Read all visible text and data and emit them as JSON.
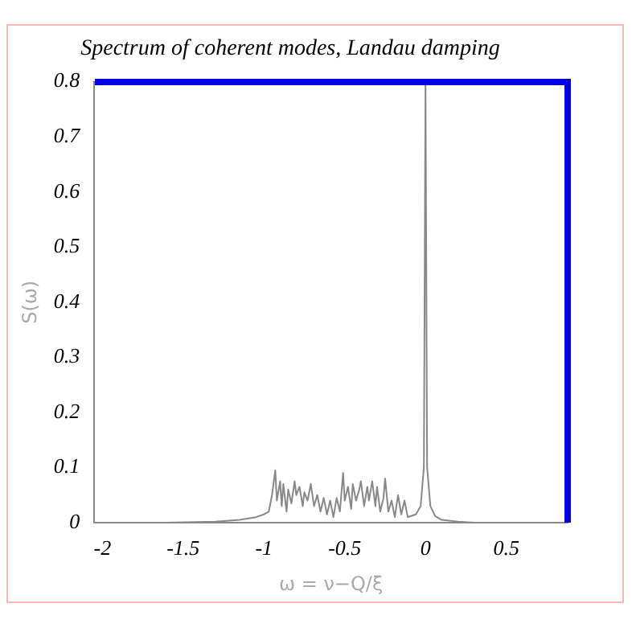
{
  "chart_data": {
    "type": "line",
    "title": "Spectrum of coherent modes, Landau damping",
    "xlabel": "ω = ν−Q/ξ",
    "ylabel": "S(ω)",
    "xlim": [
      -2.05,
      0.88
    ],
    "xticks": [
      {
        "value": -2,
        "label": "-2"
      },
      {
        "value": -1.5,
        "label": "-1.5"
      },
      {
        "value": -1,
        "label": "-1"
      },
      {
        "value": -0.5,
        "label": "-0.5"
      },
      0,
      0.5
    ],
    "ylim": [
      0,
      0.8
    ],
    "yticks": [
      0,
      0.1,
      0.2,
      0.3,
      0.4,
      0.5,
      0.6,
      0.7,
      0.8
    ],
    "x": [
      -2.05,
      -1.6,
      -1.3,
      -1.15,
      -1.05,
      -1.0,
      -0.97,
      -0.95,
      -0.93,
      -0.92,
      -0.9,
      -0.89,
      -0.88,
      -0.86,
      -0.85,
      -0.83,
      -0.81,
      -0.8,
      -0.78,
      -0.76,
      -0.75,
      -0.73,
      -0.71,
      -0.69,
      -0.67,
      -0.65,
      -0.63,
      -0.61,
      -0.59,
      -0.57,
      -0.55,
      -0.53,
      -0.51,
      -0.5,
      -0.48,
      -0.46,
      -0.45,
      -0.43,
      -0.41,
      -0.4,
      -0.38,
      -0.36,
      -0.35,
      -0.33,
      -0.31,
      -0.3,
      -0.28,
      -0.26,
      -0.25,
      -0.23,
      -0.21,
      -0.19,
      -0.17,
      -0.15,
      -0.13,
      -0.11,
      -0.09,
      -0.06,
      -0.03,
      -0.01,
      0,
      0.01,
      0.03,
      0.06,
      0.1,
      0.2,
      0.3,
      0.88
    ],
    "series": [
      {
        "color": "#888888",
        "values": [
          0,
          0,
          0.002,
          0.005,
          0.01,
          0.015,
          0.02,
          0.05,
          0.095,
          0.04,
          0.075,
          0.03,
          0.07,
          0.02,
          0.06,
          0.035,
          0.075,
          0.05,
          0.065,
          0.03,
          0.055,
          0.04,
          0.07,
          0.03,
          0.05,
          0.02,
          0.045,
          0.015,
          0.04,
          0.01,
          0.045,
          0.02,
          0.09,
          0.04,
          0.065,
          0.025,
          0.07,
          0.04,
          0.06,
          0.075,
          0.03,
          0.065,
          0.04,
          0.075,
          0.03,
          0.065,
          0.02,
          0.045,
          0.08,
          0.02,
          0.04,
          0.01,
          0.05,
          0.015,
          0.04,
          0.01,
          0.012,
          0.015,
          0.03,
          0.1,
          0.8,
          0.1,
          0.03,
          0.012,
          0.005,
          0.002,
          0,
          0
        ]
      }
    ],
    "grid": false,
    "legend": false,
    "marker": "none",
    "line_style": "solid"
  }
}
